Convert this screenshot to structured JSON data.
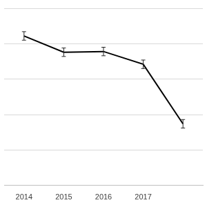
{
  "chart_data": {
    "type": "line",
    "categories": [
      "2014",
      "2015",
      "2016",
      "2017",
      null
    ],
    "values": [
      4.22,
      3.76,
      3.78,
      3.42,
      1.74
    ],
    "errors": [
      0.12,
      0.12,
      0.12,
      0.12,
      0.12
    ],
    "color": "#000000",
    "marker": "none",
    "ylim": [
      0,
      5
    ],
    "yticks": [
      0,
      1,
      2,
      3,
      4,
      5
    ],
    "grid": true,
    "tick_labels": "x"
  }
}
